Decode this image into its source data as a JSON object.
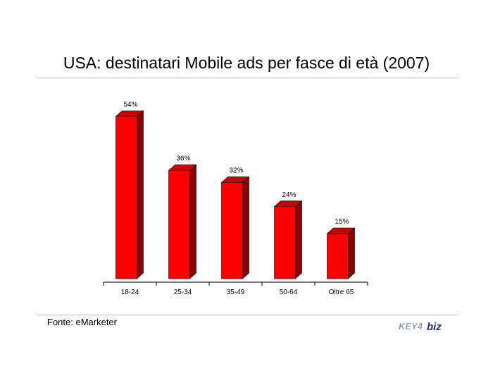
{
  "chart_data": {
    "type": "bar",
    "title": "USA: destinatari Mobile ads per fasce di età (2007)",
    "categories": [
      "18-24",
      "25-34",
      "35-49",
      "50-64",
      "Oltre 65"
    ],
    "values": [
      54,
      36,
      32,
      24,
      15
    ],
    "value_labels": [
      "54%",
      "36%",
      "32%",
      "24%",
      "15%"
    ],
    "ylim": [
      0,
      60
    ],
    "grid": false,
    "legend": "none",
    "colors": {
      "bar_front": "#ff0000",
      "bar_side": "#8b0000",
      "bar_top": "#cc0000",
      "axis": "#000000"
    }
  },
  "source": "Fonte: eMarketer",
  "logo": {
    "text_left": "KEY4",
    "text_right": "biz",
    "colors": {
      "left": "#6f7fa6",
      "right": "#1c2f6b"
    }
  }
}
